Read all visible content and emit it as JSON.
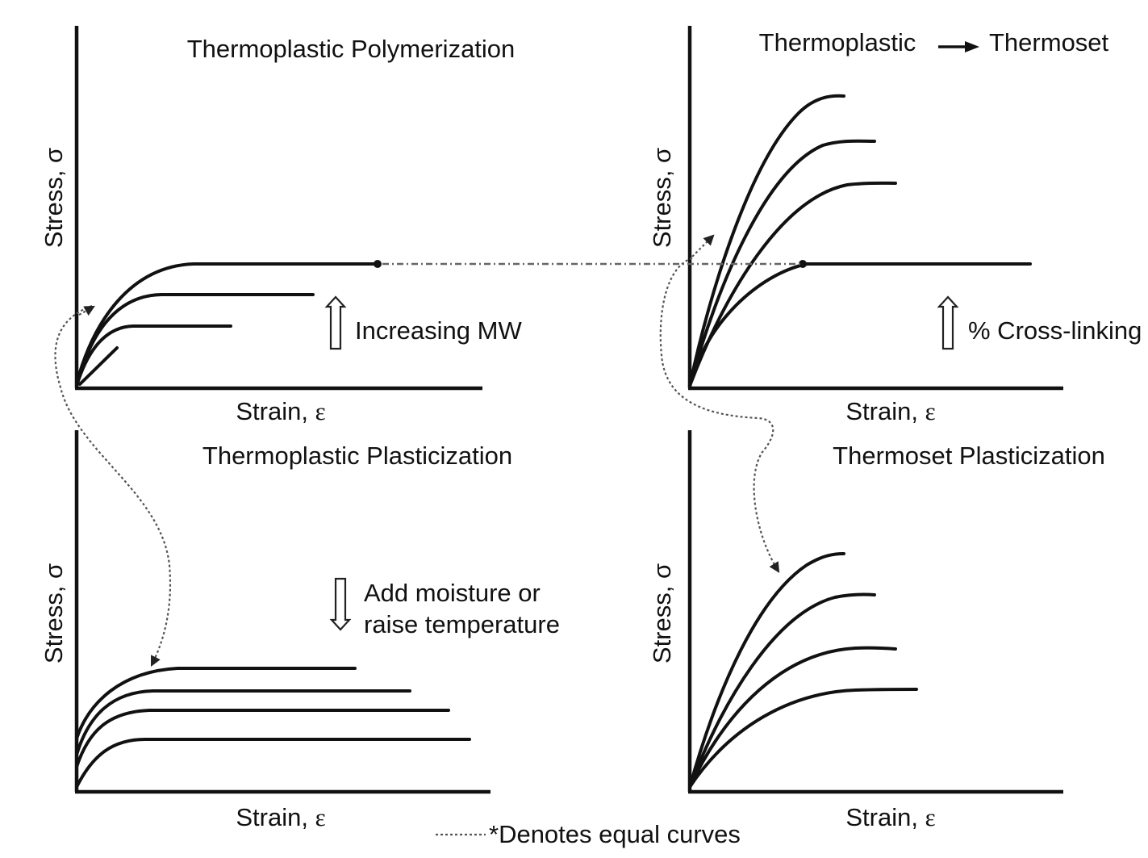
{
  "panels": {
    "top_left": {
      "title": "Thermoplastic Polymerization",
      "ylabel": "Stress, σ",
      "xlabel_word": "Strain, ",
      "xlabel_symbol": "ε",
      "annotation": "Increasing MW"
    },
    "top_right": {
      "title_left": "Thermoplastic",
      "title_right": "Thermoset",
      "ylabel": "Stress, σ",
      "xlabel_word": "Strain, ",
      "xlabel_symbol": "ε",
      "annotation": "% Cross-linking"
    },
    "bottom_left": {
      "title": "Thermoplastic Plasticization",
      "ylabel": "Stress, σ",
      "xlabel_word": "Strain, ",
      "xlabel_symbol": "ε",
      "annotation_line1": "Add moisture or",
      "annotation_line2": "raise temperature"
    },
    "bottom_right": {
      "title": "Thermoset Plasticization",
      "ylabel": "Stress, σ",
      "xlabel_word": "Strain, ",
      "xlabel_symbol": "ε"
    }
  },
  "footnote": "*Denotes equal curves"
}
